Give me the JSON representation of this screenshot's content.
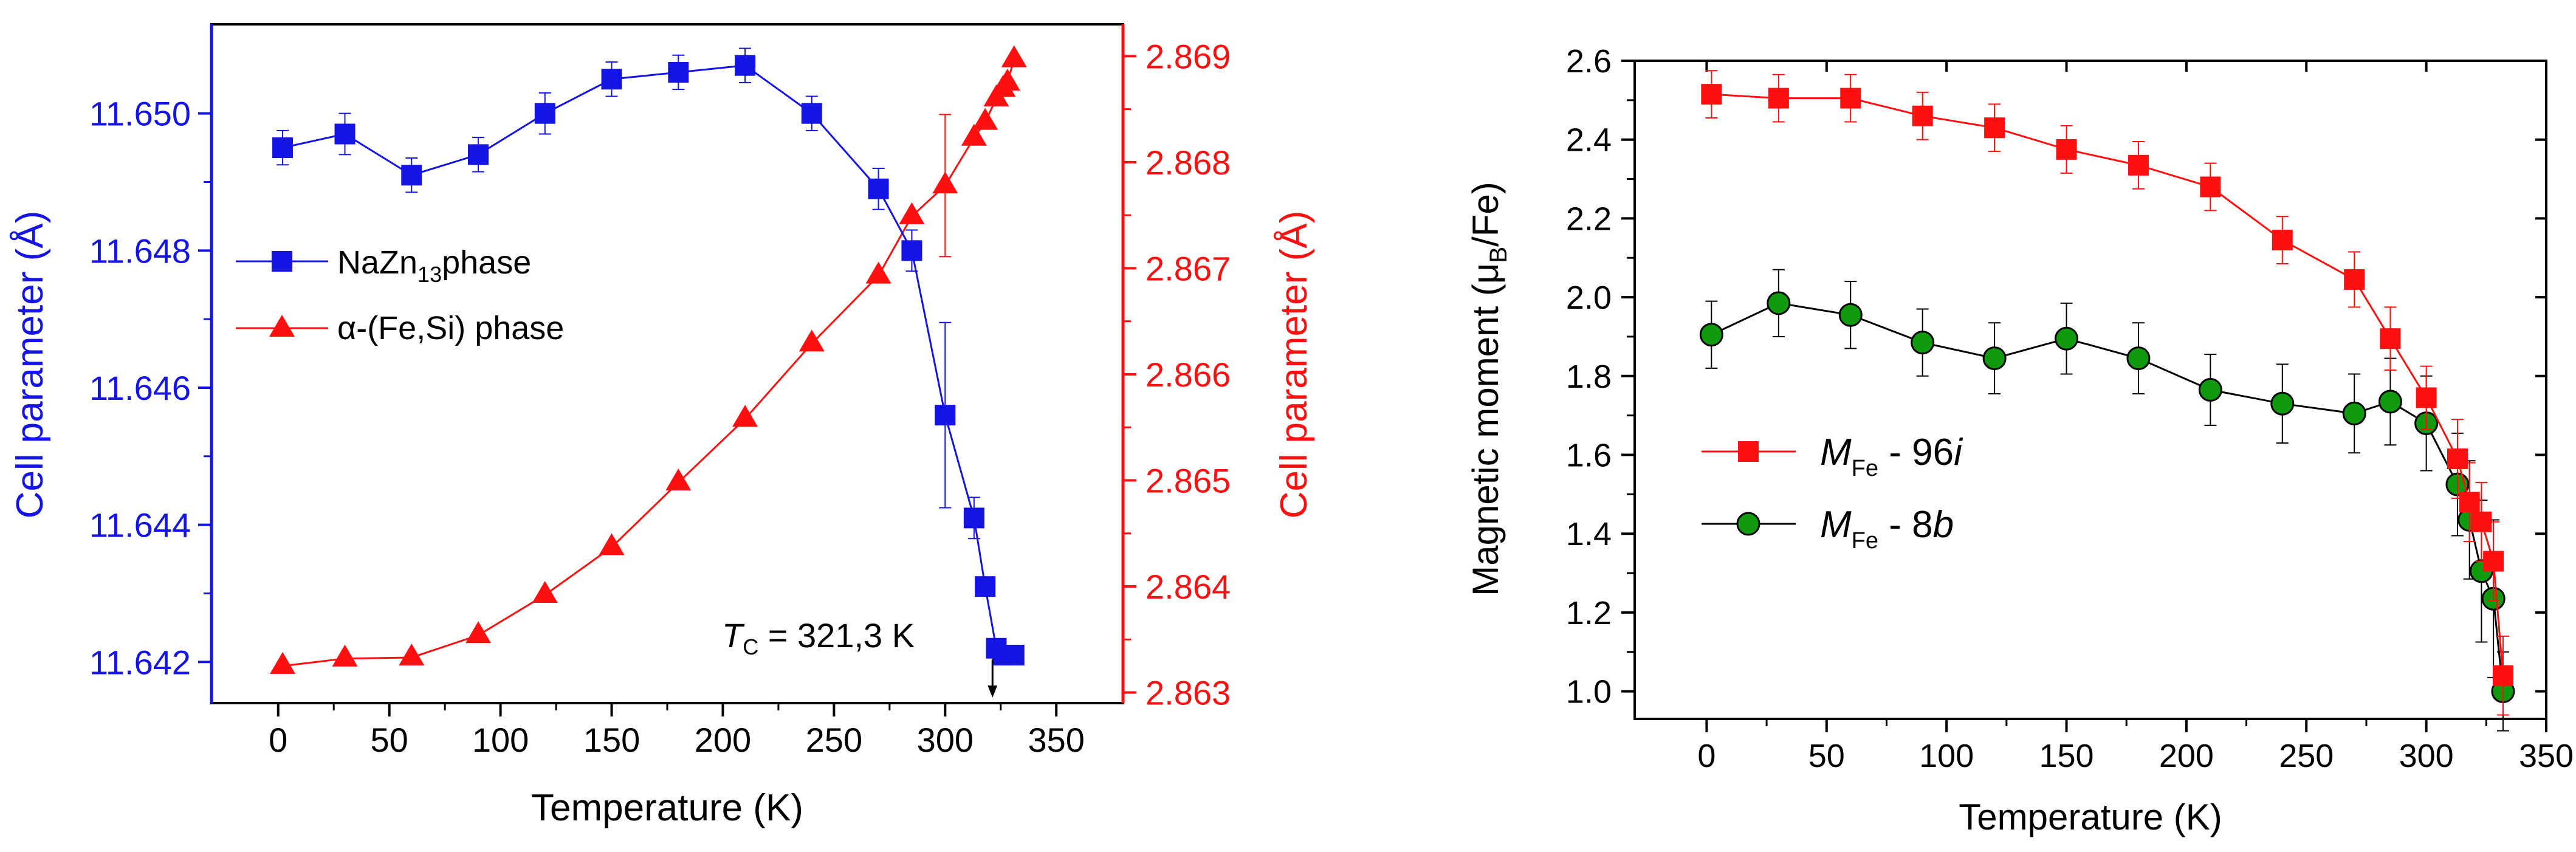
{
  "chart_data": [
    {
      "type": "scatter",
      "title": "",
      "xlabel": "Temperature (K)",
      "xlim": [
        -30,
        380
      ],
      "xticks": [
        0,
        50,
        100,
        150,
        200,
        250,
        300,
        350
      ],
      "y_left": {
        "label": "Cell parameter (Å)",
        "ylim": [
          11.6414,
          11.6513
        ],
        "ticks": [
          "11.642",
          "11.644",
          "11.646",
          "11.648",
          "11.650"
        ],
        "color": "#1414e6"
      },
      "y_right": {
        "label": "Cell parameter (Å)",
        "ylim": [
          2.8629,
          2.8693
        ],
        "ticks": [
          "2.863",
          "2.864",
          "2.865",
          "2.866",
          "2.867",
          "2.868",
          "2.869"
        ],
        "color": "#ff1010"
      },
      "series": [
        {
          "name": "NaZn13 phase",
          "legend_main": "NaZn",
          "legend_sub": "13",
          "legend_tail": "phase",
          "axis": "left",
          "marker": "square",
          "color": "#1414e6",
          "x": [
            2,
            30,
            60,
            90,
            120,
            150,
            180,
            210,
            240,
            270,
            285,
            300,
            313,
            318,
            323,
            326,
            328,
            331
          ],
          "y": [
            11.6495,
            11.6497,
            11.6491,
            11.6494,
            11.65,
            11.6505,
            11.6506,
            11.6507,
            11.65,
            11.6489,
            11.648,
            11.6456,
            11.6441,
            11.6431,
            11.6422,
            11.6421,
            11.6421,
            11.6421
          ],
          "err": [
            0.00025,
            0.0003,
            0.00025,
            0.00025,
            0.0003,
            0.00025,
            0.00025,
            0.00025,
            0.00025,
            0.0003,
            0.0003,
            0.00135,
            0.0003,
            0,
            0,
            0,
            0,
            0
          ]
        },
        {
          "name": "α-(Fe,Si) phase",
          "axis": "right",
          "marker": "triangle",
          "color": "#ff1010",
          "x": [
            2,
            30,
            60,
            90,
            120,
            150,
            180,
            210,
            240,
            270,
            285,
            300,
            313,
            318,
            323,
            326,
            328,
            331
          ],
          "y": [
            2.86325,
            2.86332,
            2.86333,
            2.86354,
            2.86392,
            2.86437,
            2.86498,
            2.86558,
            2.86629,
            2.86693,
            2.86749,
            2.86778,
            2.86823,
            2.86838,
            2.8686,
            2.86869,
            2.86875,
            2.86897
          ],
          "err": [
            0,
            0,
            0,
            0,
            0,
            0,
            0,
            0,
            0,
            0,
            0,
            0.00067,
            0,
            0,
            0,
            0,
            0,
            0
          ]
        }
      ],
      "annotation": {
        "symbol": "T",
        "sub": "C",
        "text": " = 321,3 K",
        "x": 321.3
      }
    },
    {
      "type": "scatter",
      "title": "",
      "xlabel": "Temperature (K)",
      "ylabel_pre": "Magnetic moment (μ",
      "ylabel_sub": "B",
      "ylabel_post": "/Fe)",
      "xlim": [
        -30,
        350
      ],
      "ylim": [
        0.93,
        2.6
      ],
      "xticks": [
        0,
        50,
        100,
        150,
        200,
        250,
        300,
        350
      ],
      "yticks": [
        "1.0",
        "1.2",
        "1.4",
        "1.6",
        "1.8",
        "2.0",
        "2.2",
        "2.4",
        "2.6"
      ],
      "series": [
        {
          "name": "M Fe - 96i",
          "legend_main": "M",
          "legend_sub": "Fe",
          "legend_mid": " - 96",
          "legend_ital": "i",
          "marker": "square",
          "color": "#ff1010",
          "x": [
            2,
            30,
            60,
            90,
            120,
            150,
            180,
            210,
            240,
            270,
            285,
            300,
            313,
            318,
            323,
            328,
            332
          ],
          "y": [
            2.515,
            2.505,
            2.505,
            2.46,
            2.43,
            2.375,
            2.335,
            2.28,
            2.145,
            2.045,
            1.895,
            1.745,
            1.59,
            1.48,
            1.43,
            1.33,
            1.04
          ],
          "err": [
            0.06,
            0.06,
            0.06,
            0.06,
            0.06,
            0.06,
            0.06,
            0.06,
            0.06,
            0.07,
            0.08,
            0.08,
            0.1,
            0.1,
            0.1,
            0.1,
            0.1
          ]
        },
        {
          "name": "M Fe - 8b",
          "legend_main": "M",
          "legend_sub": "Fe",
          "legend_mid": " - 8",
          "legend_ital": "b",
          "marker": "circle",
          "color": "#0f9a0f",
          "x": [
            2,
            30,
            60,
            90,
            120,
            150,
            180,
            210,
            240,
            270,
            285,
            300,
            313,
            318,
            323,
            328,
            332
          ],
          "y": [
            1.905,
            1.985,
            1.955,
            1.885,
            1.845,
            1.895,
            1.845,
            1.765,
            1.73,
            1.705,
            1.735,
            1.68,
            1.525,
            1.435,
            1.305,
            1.235,
            1.0
          ],
          "err": [
            0.085,
            0.085,
            0.085,
            0.085,
            0.09,
            0.09,
            0.09,
            0.09,
            0.1,
            0.1,
            0.11,
            0.12,
            0.13,
            0.15,
            0.18,
            0.2,
            0.1
          ]
        }
      ]
    }
  ]
}
